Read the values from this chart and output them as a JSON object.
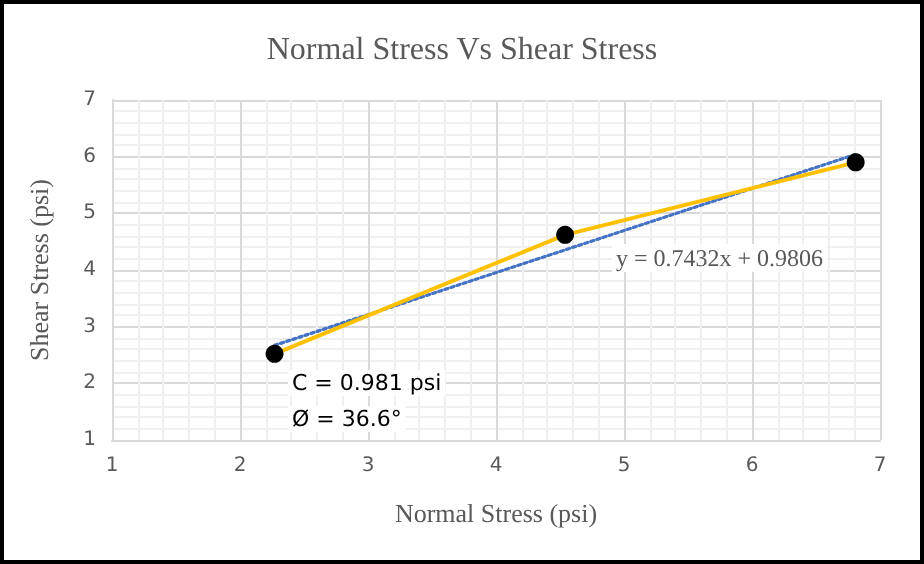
{
  "chart_data": {
    "type": "line",
    "title": "Normal Stress Vs Shear Stress",
    "xlabel": "Normal Stress (psi)",
    "ylabel": "Shear Stress (psi)",
    "x": [
      2.27,
      4.54,
      6.81
    ],
    "series": [
      {
        "color": "#ffc000",
        "values": [
          2.52,
          4.62,
          5.9
        ],
        "marker": "circle",
        "line_style": "solid"
      },
      {
        "type": "line",
        "color": "#4472c4",
        "x": [
          2.27,
          6.81
        ],
        "values": [
          2.67,
          6.04
        ],
        "marker": "none",
        "line_style": "dotted"
      }
    ],
    "xlim": [
      1,
      7
    ],
    "ylim": [
      1,
      7
    ],
    "xticks": [
      1,
      2,
      3,
      4,
      5,
      6,
      7
    ],
    "yticks": [
      1,
      2,
      3,
      4,
      5,
      6,
      7
    ],
    "grid": true,
    "annotations": [
      "y = 0.7432x + 0.9806",
      "C = 0.981 psi",
      "Ø = 36.6°"
    ]
  }
}
